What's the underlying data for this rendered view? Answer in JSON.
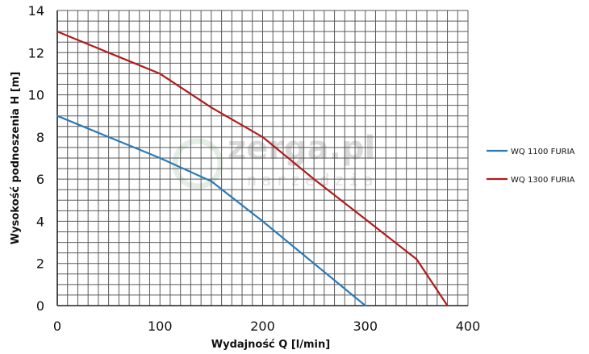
{
  "chart_data": {
    "type": "line",
    "title": "",
    "xlabel": "Wydajność Q [l/min]",
    "ylabel": "Wysokość podnoszenia H [m]",
    "xlim": [
      0,
      400
    ],
    "ylim": [
      0,
      14
    ],
    "x_ticks": [
      0,
      100,
      200,
      300,
      400
    ],
    "y_ticks": [
      0,
      2,
      4,
      6,
      8,
      10,
      12,
      14
    ],
    "grid": true,
    "legend_position": "right",
    "series": [
      {
        "name": "WQ 1100 FURIA",
        "color": "#2a7ab8",
        "x": [
          0,
          50,
          100,
          150,
          200,
          250,
          300
        ],
        "y": [
          9,
          8,
          7,
          5.9,
          4,
          2,
          0
        ]
      },
      {
        "name": "WQ 1300 FURIA",
        "color": "#b01c1c",
        "x": [
          0,
          50,
          100,
          150,
          200,
          250,
          300,
          350,
          380
        ],
        "y": [
          13,
          12,
          11,
          9.4,
          8,
          6,
          4.1,
          2.2,
          0
        ]
      }
    ]
  },
  "watermark": {
    "text": "zerga.pl",
    "subtext": "narzedzia"
  }
}
